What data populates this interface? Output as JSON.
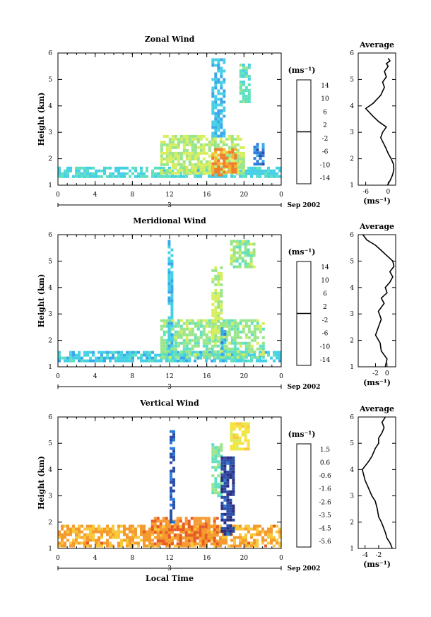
{
  "figure": {
    "xlabel": "Local Time",
    "date_label": "Sep 2002",
    "date_bar_label": "3"
  },
  "chart_data": [
    {
      "type": "heatmap",
      "title": "Zonal Wind",
      "ylabel": "Height (km)",
      "xlabel": "Local Time",
      "xlim": [
        0,
        24
      ],
      "ylim": [
        1,
        6
      ],
      "x_ticks": [
        "0",
        "4",
        "8",
        "12",
        "16",
        "20",
        "0"
      ],
      "y_ticks": [
        "1",
        "2",
        "3",
        "4",
        "5",
        "6"
      ],
      "colorbar": {
        "unit": "(ms⁻¹)",
        "range": [
          -16,
          16
        ],
        "ticks": [
          "14",
          "10",
          "6",
          "2",
          "-2",
          "-6",
          "-10",
          "-14"
        ],
        "black_line_at": 0
      },
      "data_regions": [
        {
          "x": [
            0,
            24
          ],
          "y": [
            1.3,
            1.7
          ],
          "value": -4
        },
        {
          "x": [
            11,
            20
          ],
          "y": [
            1.5,
            2.9
          ],
          "value": 2
        },
        {
          "x": [
            16.5,
            19
          ],
          "y": [
            1.4,
            2.4
          ],
          "value": 10
        },
        {
          "x": [
            16.5,
            18
          ],
          "y": [
            2.9,
            5.8
          ],
          "value": -6
        },
        {
          "x": [
            19.5,
            20.5
          ],
          "y": [
            4.2,
            5.6
          ],
          "value": -2
        },
        {
          "x": [
            21,
            22
          ],
          "y": [
            1.8,
            2.6
          ],
          "value": -10
        }
      ],
      "profile": {
        "title": "Average",
        "xlabel": "(ms⁻¹)",
        "xlim": [
          -8,
          2
        ],
        "x_ticks": [
          "-6",
          "0"
        ],
        "y_ticks": [
          "1",
          "2",
          "3",
          "4",
          "5",
          "6"
        ],
        "x": [
          -0.2,
          0.6,
          1.2,
          1.5,
          1.4,
          0.8,
          0.0,
          -0.6,
          -1.3,
          -2.0,
          -1.5,
          -0.5,
          -2.5,
          -4.0,
          -6.0,
          -4.0,
          -2.0,
          -1.0,
          -1.5,
          -0.5,
          -1.0,
          0.0,
          -0.5,
          0.5,
          0.0
        ],
        "y": [
          1.0,
          1.2,
          1.4,
          1.6,
          1.8,
          2.0,
          2.2,
          2.4,
          2.6,
          2.8,
          3.0,
          3.2,
          3.4,
          3.6,
          3.9,
          4.1,
          4.4,
          4.7,
          4.9,
          5.1,
          5.3,
          5.5,
          5.6,
          5.7,
          5.8
        ]
      }
    },
    {
      "type": "heatmap",
      "title": "Meridional Wind",
      "ylabel": "Height (km)",
      "xlabel": "Local Time",
      "xlim": [
        0,
        24
      ],
      "ylim": [
        1,
        6
      ],
      "x_ticks": [
        "0",
        "4",
        "8",
        "12",
        "16",
        "20",
        "0"
      ],
      "y_ticks": [
        "1",
        "2",
        "3",
        "4",
        "5",
        "6"
      ],
      "colorbar": {
        "unit": "(ms⁻¹)",
        "range": [
          -16,
          16
        ],
        "ticks": [
          "14",
          "10",
          "6",
          "2",
          "-2",
          "-6",
          "-10",
          "-14"
        ],
        "black_line_at": 0
      },
      "data_regions": [
        {
          "x": [
            0,
            24
          ],
          "y": [
            1.2,
            1.6
          ],
          "value": -5
        },
        {
          "x": [
            11,
            22
          ],
          "y": [
            1.4,
            2.8
          ],
          "value": 0
        },
        {
          "x": [
            11.8,
            12.3
          ],
          "y": [
            1.5,
            5.8
          ],
          "value": -6
        },
        {
          "x": [
            16.5,
            17.5
          ],
          "y": [
            2.0,
            4.8
          ],
          "value": 2
        },
        {
          "x": [
            18.5,
            21
          ],
          "y": [
            4.8,
            5.8
          ],
          "value": 0
        },
        {
          "x": [
            17.5,
            18
          ],
          "y": [
            1.5,
            2.5
          ],
          "value": -8
        }
      ],
      "profile": {
        "title": "Average",
        "xlabel": "(ms⁻¹)",
        "xlim": [
          -5,
          1.5
        ],
        "x_ticks": [
          "-2",
          "0"
        ],
        "y_ticks": [
          "1",
          "2",
          "3",
          "4",
          "5",
          "6"
        ],
        "x": [
          -0.3,
          0.0,
          -1.0,
          -1.2,
          -2.0,
          -1.5,
          -1.0,
          -1.5,
          -0.5,
          -1.0,
          0.0,
          -0.3,
          0.5,
          1.0,
          0.5,
          1.2,
          1.0,
          0.0,
          -1.0,
          -2.0,
          -3.5,
          -4.2
        ],
        "y": [
          1.0,
          1.3,
          1.6,
          1.9,
          2.2,
          2.5,
          2.8,
          3.1,
          3.4,
          3.6,
          3.8,
          4.0,
          4.2,
          4.4,
          4.6,
          4.8,
          5.0,
          5.2,
          5.4,
          5.6,
          5.8,
          6.0
        ]
      }
    },
    {
      "type": "heatmap",
      "title": "Vertical Wind",
      "ylabel": "Height (km)",
      "xlabel": "Local Time",
      "xlim": [
        0,
        24
      ],
      "ylim": [
        1,
        6
      ],
      "x_ticks": [
        "0",
        "4",
        "8",
        "12",
        "16",
        "20",
        "0"
      ],
      "y_ticks": [
        "1",
        "2",
        "3",
        "4",
        "5",
        "6"
      ],
      "colorbar": {
        "unit": "(ms⁻¹)",
        "range": [
          -6,
          2
        ],
        "ticks": [
          "1.5",
          "0.6",
          "-0.6",
          "-1.6",
          "-2.6",
          "-3.5",
          "-4.5",
          "-5.6"
        ],
        "black_line_at": null
      },
      "data_regions": [
        {
          "x": [
            0,
            24
          ],
          "y": [
            1.1,
            1.9
          ],
          "value": 0.0
        },
        {
          "x": [
            10,
            17
          ],
          "y": [
            1.2,
            2.2
          ],
          "value": 0.5
        },
        {
          "x": [
            12,
            12.4
          ],
          "y": [
            2.0,
            5.5
          ],
          "value": -5.0
        },
        {
          "x": [
            16.5,
            17.5
          ],
          "y": [
            3.0,
            5.0
          ],
          "value": -2.5
        },
        {
          "x": [
            17.5,
            19
          ],
          "y": [
            1.5,
            4.5
          ],
          "value": -5.5
        },
        {
          "x": [
            18.5,
            20.5
          ],
          "y": [
            4.8,
            5.8
          ],
          "value": -1.0
        }
      ],
      "profile": {
        "title": "Average",
        "xlabel": "(ms⁻¹)",
        "xlim": [
          -5,
          0.5
        ],
        "x_ticks": [
          "-4",
          "-2"
        ],
        "y_ticks": [
          "1",
          "2",
          "3",
          "4",
          "5",
          "6"
        ],
        "x": [
          0.0,
          -0.3,
          -0.8,
          -1.0,
          -1.3,
          -1.6,
          -2.0,
          -2.2,
          -2.5,
          -3.0,
          -3.5,
          -4.0,
          -4.4,
          -3.5,
          -3.0,
          -2.5,
          -2.0,
          -2.0,
          -1.5,
          -1.2,
          -1.5,
          -1.0
        ],
        "y": [
          1.0,
          1.2,
          1.4,
          1.6,
          1.8,
          2.0,
          2.2,
          2.5,
          2.8,
          3.0,
          3.3,
          3.6,
          4.0,
          4.3,
          4.5,
          4.8,
          5.0,
          5.2,
          5.4,
          5.6,
          5.8,
          6.0
        ]
      }
    }
  ]
}
